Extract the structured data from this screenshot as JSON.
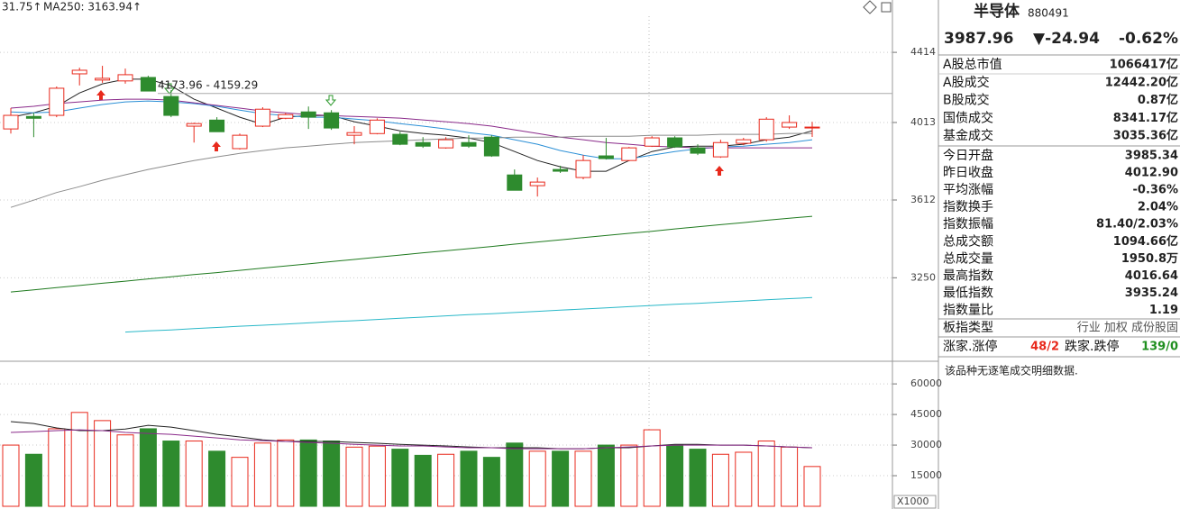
{
  "header": {
    "indicators": [
      {
        "text": "31.75↑",
        "color": "#2e9a2e"
      },
      {
        "text": "MA250: 3163.94↑",
        "color": "#12a3a3"
      }
    ]
  },
  "chart_data": [
    {
      "type": "candlestick",
      "open": [
        3978,
        4046,
        4052,
        4287,
        4251,
        4246,
        4266,
        4157,
        3993,
        4026,
        3873,
        3993,
        4036,
        4071,
        4066,
        3944,
        3953,
        3949,
        3905,
        3877,
        3905,
        3934,
        3737,
        3683,
        3765,
        3724,
        3835,
        3811,
        3886,
        3930,
        3877,
        3830,
        3901,
        3920,
        3988,
        3985.34
      ],
      "high": [
        4092,
        4066,
        4214,
        4323,
        4334,
        4318,
        4276,
        4193,
        4012,
        4042,
        3953,
        4097,
        4066,
        4101,
        4081,
        3993,
        4036,
        3963,
        3934,
        3934,
        3944,
        3944,
        3765,
        3724,
        3784,
        3839,
        3930,
        3882,
        3939,
        3939,
        3896,
        3920,
        3930,
        4042,
        4052,
        4016.64
      ],
      "low": [
        3953,
        3934,
        4042,
        4220,
        4235,
        4230,
        4188,
        4042,
        3905,
        3963,
        3868,
        3988,
        4031,
        3978,
        3973,
        3896,
        3949,
        3891,
        3877,
        3873,
        3877,
        3830,
        3660,
        3629,
        3747,
        3715,
        3816,
        3807,
        3882,
        3877,
        3839,
        3825,
        3891,
        3910,
        3978,
        3935.24
      ],
      "close": [
        4052,
        4036,
        4204,
        4308,
        4261,
        4282,
        4188,
        4052,
        4007,
        3963,
        3944,
        4086,
        4056,
        4042,
        3983,
        3958,
        4026,
        3896,
        3886,
        3920,
        3886,
        3835,
        3660,
        3701,
        3756,
        3811,
        3821,
        3877,
        3930,
        3882,
        3849,
        3905,
        3920,
        4031,
        4012.9,
        3987.96
      ],
      "up_color": "#e8291c",
      "down_color": "#2e8b2e",
      "ylim": [
        2923,
        4636
      ],
      "log_scale": true,
      "yticks": [
        4414,
        4013,
        3612,
        3250
      ],
      "grid": true,
      "annotation": "4173.96 - 4159.29",
      "reference_line": 4173.96,
      "lines": [
        {
          "color": "#222222",
          "values": [
            4042,
            4066,
            4102,
            4177,
            4229,
            4256,
            4256,
            4218,
            4142,
            4092,
            4042,
            4003,
            4042,
            4051,
            4051,
            4017,
            3993,
            3968,
            3954,
            3944,
            3929,
            3905,
            3858,
            3811,
            3779,
            3756,
            3756,
            3811,
            3858,
            3882,
            3886,
            3886,
            3896,
            3920,
            3934,
            3968
          ]
        },
        {
          "color": "#2a8fd6",
          "values": [
            4071,
            4066,
            4071,
            4092,
            4112,
            4127,
            4132,
            4127,
            4117,
            4102,
            4081,
            4061,
            4051,
            4042,
            4042,
            4032,
            4022,
            4007,
            3993,
            3978,
            3958,
            3944,
            3920,
            3896,
            3863,
            3839,
            3820,
            3820,
            3839,
            3858,
            3872,
            3882,
            3886,
            3896,
            3905,
            3920
          ]
        },
        {
          "color": "#8a2a8a",
          "values": [
            4092,
            4102,
            4117,
            4127,
            4137,
            4142,
            4142,
            4137,
            4122,
            4107,
            4092,
            4076,
            4066,
            4056,
            4051,
            4046,
            4042,
            4037,
            4027,
            4017,
            4007,
            3993,
            3973,
            3954,
            3934,
            3920,
            3905,
            3896,
            3886,
            3882,
            3877,
            3877,
            3877,
            3877,
            3877,
            3877
          ]
        },
        {
          "color": "#8c8c8c",
          "values": [
            3576,
            3611,
            3649,
            3678,
            3710,
            3738,
            3765,
            3788,
            3811,
            3830,
            3848,
            3863,
            3877,
            3886,
            3896,
            3905,
            3910,
            3915,
            3920,
            3925,
            3929,
            3929,
            3934,
            3934,
            3934,
            3939,
            3939,
            3939,
            3944,
            3944,
            3944,
            3949,
            3949,
            3949,
            3954,
            3954
          ]
        },
        {
          "color": "#1f7a1f",
          "values": [
            3188,
            3197,
            3207,
            3216,
            3226,
            3235,
            3245,
            3254,
            3264,
            3273,
            3283,
            3293,
            3302,
            3312,
            3322,
            3332,
            3342,
            3352,
            3362,
            3371,
            3381,
            3391,
            3402,
            3412,
            3422,
            3432,
            3442,
            3452,
            3462,
            3473,
            3483,
            3493,
            3503,
            3514,
            3524,
            3533
          ]
        },
        {
          "color": "#29b8c8",
          "values": [
            null,
            null,
            null,
            null,
            null,
            3019,
            3024,
            3028,
            3033,
            3038,
            3043,
            3047,
            3052,
            3057,
            3062,
            3066,
            3071,
            3076,
            3081,
            3086,
            3091,
            3095,
            3100,
            3105,
            3110,
            3115,
            3120,
            3125,
            3130,
            3135,
            3139,
            3144,
            3149,
            3154,
            3159,
            3163.94
          ]
        }
      ]
    },
    {
      "type": "volume",
      "values": [
        30000,
        25500,
        38000,
        46000,
        42000,
        35000,
        38000,
        32000,
        32000,
        27000,
        24000,
        31000,
        32500,
        32500,
        32000,
        29000,
        29500,
        28000,
        25000,
        25500,
        27000,
        24000,
        31000,
        27000,
        27000,
        27000,
        30000,
        30000,
        37500,
        30000,
        28000,
        25500,
        26500,
        32000,
        29000,
        19500
      ],
      "ylim": [
        0,
        68000
      ],
      "yticks": [
        60000,
        45000,
        30000,
        15000
      ],
      "grid": true,
      "unit_label": "X1000",
      "lines": [
        {
          "color": "#222222",
          "values": [
            41500,
            40600,
            38400,
            37100,
            37100,
            37900,
            39700,
            38800,
            37100,
            35300,
            34000,
            32600,
            31800,
            31800,
            31800,
            31300,
            30900,
            30400,
            30000,
            29600,
            29100,
            28700,
            28700,
            28700,
            28200,
            28200,
            28700,
            28700,
            29600,
            30400,
            30400,
            30000,
            30000,
            29600,
            29100,
            28700
          ]
        },
        {
          "color": "#8a2a8a",
          "values": [
            36200,
            36600,
            37100,
            37500,
            37100,
            36200,
            35700,
            35300,
            34400,
            33500,
            32600,
            32200,
            31800,
            31300,
            30900,
            30400,
            30000,
            29600,
            29600,
            29100,
            28700,
            28700,
            28200,
            28200,
            28200,
            28200,
            28700,
            29100,
            29600,
            30000,
            30000,
            30000,
            30000,
            29600,
            29100,
            28700
          ]
        }
      ]
    }
  ],
  "quote_panel": {
    "name": "半导体",
    "code": "880491",
    "price": "3987.96",
    "change": "▼-24.94",
    "change_pct": "-0.62%",
    "quote_color": "#1f8f1f",
    "rows": [
      {
        "label": "A股总市值",
        "value": "1066417亿",
        "color": "#000000"
      },
      {
        "label": "A股成交",
        "value": "12442.20亿",
        "color": "#000000"
      },
      {
        "label": "B股成交",
        "value": "0.87亿",
        "color": "#000000"
      },
      {
        "label": "国债成交",
        "value": "8341.17亿",
        "color": "#000000"
      },
      {
        "label": "基金成交",
        "value": "3035.36亿",
        "color": "#000000"
      },
      {
        "label": "今日开盘",
        "value": "3985.34",
        "color": "#1f8f1f"
      },
      {
        "label": "昨日收盘",
        "value": "4012.90",
        "color": "#000000"
      },
      {
        "label": "平均涨幅",
        "value": "-0.36%",
        "color": "#1f8f1f"
      },
      {
        "label": "指数换手",
        "value": "2.04%",
        "color": "#000000"
      },
      {
        "label": "指数振幅",
        "value": "81.40/2.03%",
        "color": "#000000"
      },
      {
        "label": "总成交额",
        "value": "1094.66亿",
        "color": "#000000"
      },
      {
        "label": "总成交量",
        "value": "1950.8万",
        "color": "#000000"
      },
      {
        "label": "最高指数",
        "value": "4016.64",
        "color": "#e8291c"
      },
      {
        "label": "最低指数",
        "value": "3935.24",
        "color": "#1f8f1f"
      },
      {
        "label": "指数量比",
        "value": "1.19",
        "color": "#e8291c"
      }
    ],
    "board_label": "板指类型",
    "board_value": "行业 加权 成份股固",
    "breadth": [
      "涨家.涨停",
      "48/2",
      "跌家.跌停",
      "139/0"
    ],
    "note": "该品种无逐笔成交明细数据."
  }
}
